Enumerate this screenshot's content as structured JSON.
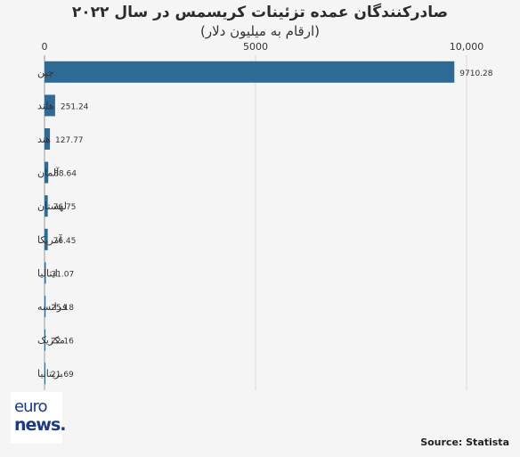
{
  "header": {
    "title": "صادرکنندگان عمده تزئینات کریسمس در سال ۲۰۲۲",
    "subtitle": "(ارقام به میلیون دلار)"
  },
  "chart_data": {
    "type": "bar",
    "orientation": "horizontal",
    "categories": [
      "چین",
      "هلند",
      "هند",
      "آلمان",
      "لهستان",
      "آمریکا",
      "ایتالیا",
      "فرانسه",
      "مکزیک",
      "بریتانیا"
    ],
    "values": [
      9710.28,
      251.24,
      127.77,
      88.64,
      76.75,
      76.45,
      31.07,
      25.18,
      22.16,
      21.69
    ],
    "value_labels": [
      "9710.28",
      "251.24",
      "127.77",
      "88.64",
      "76.75",
      "76.45",
      "31.07",
      "25.18",
      "22.16",
      "21.69"
    ],
    "xlim": [
      0,
      10000
    ],
    "xticks": [
      0,
      5000,
      10000
    ],
    "xtick_labels": [
      "0",
      "5000",
      "10,000"
    ],
    "grid": true,
    "bar_color": "#2e6a96"
  },
  "branding": {
    "logo_line1": "euro",
    "logo_line2": "news.",
    "logo_color": "#1d3a8a",
    "source": "Source: Statista"
  }
}
